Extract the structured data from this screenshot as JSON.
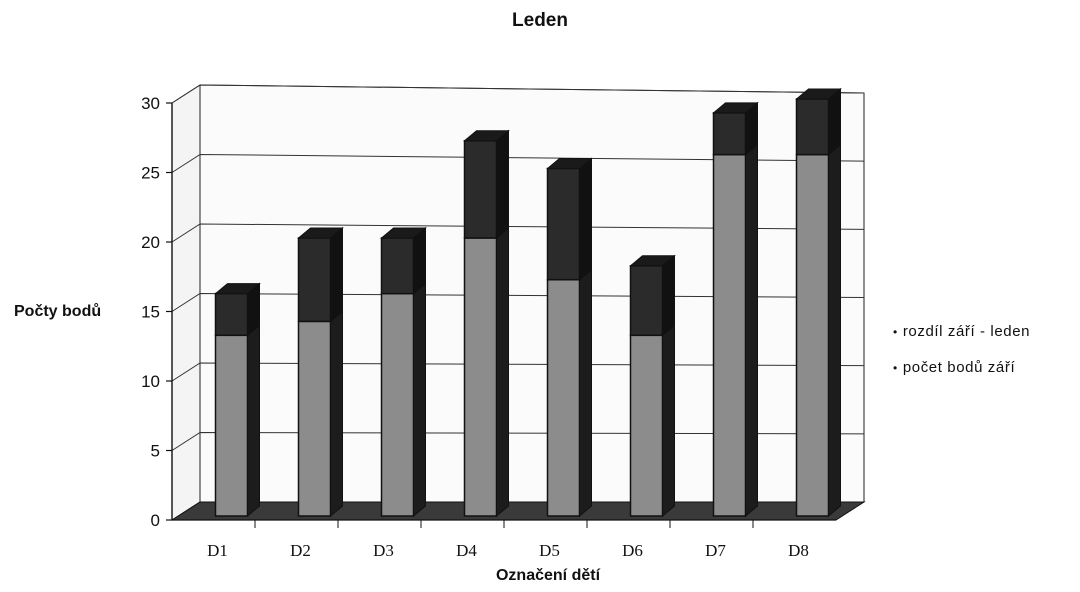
{
  "chart_data": {
    "type": "bar",
    "stacked": true,
    "title": "Leden",
    "xlabel": "Označení dětí",
    "ylabel": "Počty bodů",
    "categories": [
      "D1",
      "D2",
      "D3",
      "D4",
      "D5",
      "D6",
      "D7",
      "D8"
    ],
    "ylim": [
      0,
      30
    ],
    "yticks": [
      "0",
      "5",
      "10",
      "15",
      "20",
      "25",
      "30"
    ],
    "grid": true,
    "three_d": true,
    "legend_position": "right",
    "series": [
      {
        "name": "počet bodů září",
        "values": [
          13,
          14,
          16,
          20,
          17,
          13,
          26,
          26
        ],
        "color": "#8c8c8c"
      },
      {
        "name": "rozdíl září - leden",
        "values": [
          3,
          6,
          4,
          7,
          8,
          5,
          3,
          4
        ],
        "color": "#2b2b2b"
      }
    ],
    "legend": [
      {
        "label": "rozdíl září - leden"
      },
      {
        "label": "počet bodů září"
      }
    ]
  }
}
